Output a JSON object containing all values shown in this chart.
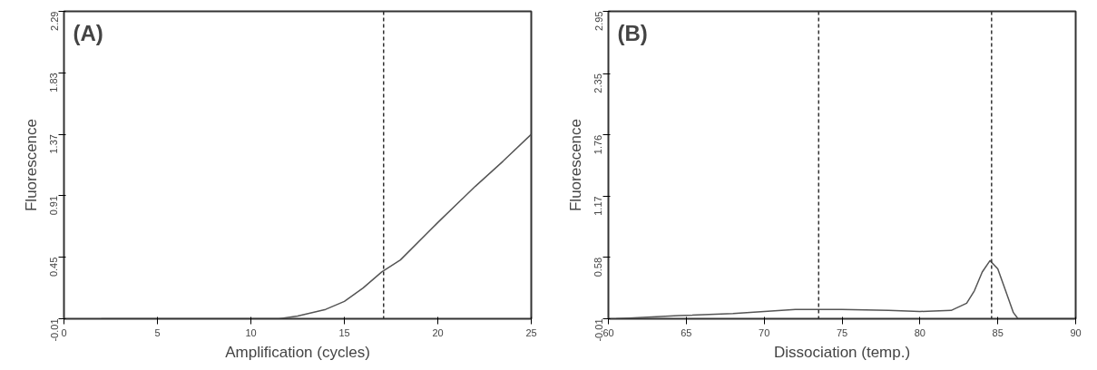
{
  "chart_data": [
    {
      "type": "line",
      "xlabel": "Amplification (cycles)",
      "ylabel": "Fluorescence",
      "annotations": [
        "(A)"
      ],
      "grid": false,
      "x": [
        2,
        8.5,
        11.5,
        12.5,
        14,
        15,
        16,
        17,
        18,
        20,
        22,
        23.5,
        25
      ],
      "series": [
        {
          "color": "#555555",
          "values": [
            -0.01,
            -0.01,
            -0.01,
            0.01,
            0.06,
            0.12,
            0.22,
            0.34,
            0.43,
            0.71,
            0.98,
            1.17,
            1.37
          ]
        }
      ],
      "xlim": [
        0,
        25
      ],
      "xticks": [
        0,
        5,
        10,
        15,
        20,
        25
      ],
      "ylim": [
        -0.01,
        2.29
      ],
      "yticks": [
        -0.01,
        0.45,
        0.91,
        1.37,
        1.83,
        2.29
      ],
      "ref_lines": [
        {
          "axis": "x",
          "value": 17.1,
          "line_style": "dashed",
          "color": "#333333"
        }
      ]
    },
    {
      "type": "line",
      "xlabel": "Dissociation (temp.)",
      "ylabel": "Fluorescence",
      "annotations": [
        "(B)"
      ],
      "grid": false,
      "x": [
        60.5,
        64.5,
        68,
        70,
        72,
        75,
        78,
        80,
        82,
        83,
        83.5,
        84,
        84.5,
        85,
        85.5,
        86,
        86.3,
        88,
        90
      ],
      "series": [
        {
          "color": "#555555",
          "values": [
            -0.01,
            0.02,
            0.04,
            0.06,
            0.08,
            0.08,
            0.07,
            0.06,
            0.07,
            0.14,
            0.26,
            0.44,
            0.55,
            0.47,
            0.26,
            0.05,
            -0.01,
            -0.01,
            -0.01
          ]
        }
      ],
      "xlim": [
        60,
        90
      ],
      "xticks": [
        60,
        65,
        70,
        75,
        80,
        85,
        90
      ],
      "ylim": [
        -0.01,
        2.95
      ],
      "yticks": [
        -0.01,
        0.58,
        1.17,
        1.76,
        2.35,
        2.95
      ],
      "ref_lines": [
        {
          "axis": "x",
          "value": 73.5,
          "line_style": "dashed",
          "color": "#333333"
        },
        {
          "axis": "x",
          "value": 84.6,
          "line_style": "dashed",
          "color": "#333333"
        }
      ]
    }
  ]
}
